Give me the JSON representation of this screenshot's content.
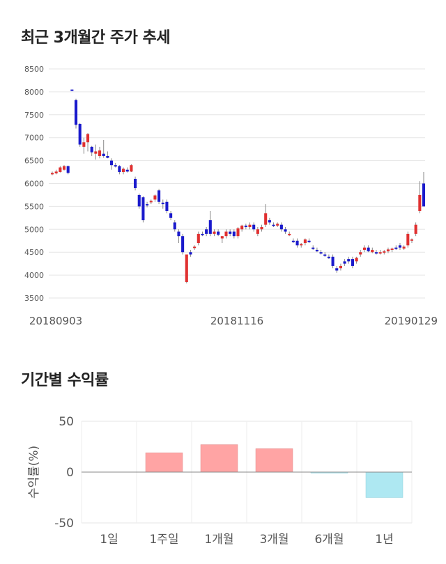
{
  "chart_data": [
    {
      "type": "candlestick",
      "title": "최근 3개월간 주가 추세",
      "y_ticks": [
        3500,
        4000,
        4500,
        5000,
        5500,
        6000,
        6500,
        7000,
        7500,
        8000,
        8500
      ],
      "ylim": [
        3500,
        8500
      ],
      "x_labels": [
        "20180903",
        "20181116",
        "20190129"
      ],
      "grid": true,
      "up_color": "#e03030",
      "down_color": "#1a1acc",
      "candles": [
        [
          6200,
          6260,
          6180,
          6230
        ],
        [
          6220,
          6300,
          6200,
          6260
        ],
        [
          6250,
          6380,
          6240,
          6350
        ],
        [
          6300,
          6400,
          6280,
          6380
        ],
        [
          6380,
          6390,
          6200,
          6230
        ],
        [
          8050,
          8050,
          8030,
          8040
        ],
        [
          7820,
          7850,
          7200,
          7280
        ],
        [
          7300,
          7320,
          6800,
          6850
        ],
        [
          6800,
          7000,
          6650,
          6900
        ],
        [
          6900,
          7100,
          6700,
          7080
        ],
        [
          6800,
          6820,
          6600,
          6680
        ],
        [
          6650,
          6850,
          6520,
          6700
        ],
        [
          6600,
          6800,
          6550,
          6720
        ],
        [
          6650,
          6950,
          6560,
          6600
        ],
        [
          6600,
          6700,
          6550,
          6560
        ],
        [
          6500,
          6550,
          6300,
          6400
        ],
        [
          6400,
          6450,
          6350,
          6380
        ],
        [
          6380,
          6400,
          6200,
          6250
        ],
        [
          6250,
          6350,
          6200,
          6320
        ],
        [
          6300,
          6350,
          6240,
          6260
        ],
        [
          6260,
          6420,
          6250,
          6400
        ],
        [
          6100,
          6150,
          5850,
          5900
        ],
        [
          5750,
          5780,
          5450,
          5500
        ],
        [
          5700,
          5720,
          5150,
          5200
        ],
        [
          5550,
          5600,
          5480,
          5520
        ],
        [
          5600,
          5650,
          5550,
          5620
        ],
        [
          5650,
          5760,
          5600,
          5740
        ],
        [
          5850,
          5880,
          5550,
          5600
        ],
        [
          5580,
          5650,
          5450,
          5560
        ],
        [
          5600,
          5650,
          5350,
          5400
        ],
        [
          5350,
          5400,
          5200,
          5250
        ],
        [
          5150,
          5200,
          4950,
          5000
        ],
        [
          4950,
          5000,
          4700,
          4850
        ],
        [
          4850,
          4900,
          4450,
          4500
        ],
        [
          3850,
          4450,
          3820,
          4450
        ],
        [
          4500,
          4550,
          4400,
          4450
        ],
        [
          4600,
          4650,
          4550,
          4620
        ],
        [
          4700,
          4950,
          4650,
          4900
        ],
        [
          4900,
          4950,
          4850,
          4880
        ],
        [
          5000,
          5050,
          4850,
          4900
        ],
        [
          5200,
          5400,
          4850,
          4900
        ],
        [
          4900,
          5000,
          4850,
          4950
        ],
        [
          4950,
          5000,
          4850,
          4880
        ],
        [
          4800,
          4850,
          4700,
          4850
        ],
        [
          4850,
          5000,
          4800,
          4950
        ],
        [
          4950,
          5000,
          4850,
          4900
        ],
        [
          4950,
          5000,
          4800,
          4850
        ],
        [
          4850,
          5050,
          4800,
          5020
        ],
        [
          5000,
          5100,
          4950,
          5080
        ],
        [
          5080,
          5120,
          5000,
          5050
        ],
        [
          5050,
          5150,
          5000,
          5100
        ],
        [
          5100,
          5150,
          4950,
          5000
        ],
        [
          4900,
          5050,
          4850,
          5000
        ],
        [
          5000,
          5100,
          4950,
          5050
        ],
        [
          5100,
          5550,
          5050,
          5350
        ],
        [
          5200,
          5250,
          5100,
          5150
        ],
        [
          5100,
          5150,
          5050,
          5080
        ],
        [
          5080,
          5150,
          5050,
          5120
        ],
        [
          5100,
          5150,
          4950,
          5000
        ],
        [
          5000,
          5050,
          4900,
          4950
        ],
        [
          4900,
          4950,
          4850,
          4900
        ],
        [
          4750,
          4800,
          4700,
          4720
        ],
        [
          4750,
          4800,
          4600,
          4650
        ],
        [
          4650,
          4700,
          4600,
          4680
        ],
        [
          4700,
          4800,
          4650,
          4780
        ],
        [
          4750,
          4800,
          4700,
          4720
        ],
        [
          4600,
          4650,
          4550,
          4580
        ],
        [
          4550,
          4600,
          4500,
          4520
        ],
        [
          4500,
          4550,
          4450,
          4480
        ],
        [
          4450,
          4500,
          4400,
          4420
        ],
        [
          4400,
          4450,
          4350,
          4380
        ],
        [
          4400,
          4450,
          4150,
          4200
        ],
        [
          4150,
          4200,
          4050,
          4100
        ],
        [
          4150,
          4250,
          4100,
          4200
        ],
        [
          4300,
          4350,
          4200,
          4250
        ],
        [
          4350,
          4400,
          4250,
          4300
        ],
        [
          4350,
          4400,
          4150,
          4200
        ],
        [
          4300,
          4400,
          4250,
          4380
        ],
        [
          4450,
          4550,
          4400,
          4500
        ],
        [
          4550,
          4650,
          4500,
          4600
        ],
        [
          4600,
          4650,
          4500,
          4520
        ],
        [
          4500,
          4600,
          4480,
          4550
        ],
        [
          4500,
          4550,
          4450,
          4480
        ],
        [
          4480,
          4550,
          4450,
          4500
        ],
        [
          4500,
          4550,
          4450,
          4520
        ],
        [
          4520,
          4600,
          4480,
          4560
        ],
        [
          4550,
          4600,
          4500,
          4580
        ],
        [
          4600,
          4650,
          4550,
          4580
        ],
        [
          4650,
          4700,
          4550,
          4600
        ],
        [
          4580,
          4650,
          4550,
          4620
        ],
        [
          4650,
          4950,
          4600,
          4900
        ],
        [
          4750,
          4800,
          4700,
          4780
        ],
        [
          4900,
          5150,
          4850,
          5100
        ],
        [
          5400,
          6050,
          5350,
          5750
        ],
        [
          6000,
          6250,
          5500,
          5500
        ]
      ]
    },
    {
      "type": "bar",
      "title": "기간별 수익률",
      "ylabel": "수익률(%)",
      "categories": [
        "1일",
        "1주일",
        "1개월",
        "3개월",
        "6개월",
        "1년"
      ],
      "values": [
        0,
        19,
        27,
        23,
        -1,
        -25
      ],
      "ylim": [
        -50,
        50
      ],
      "y_ticks": [
        -50,
        0,
        50
      ],
      "positive_color": "#ffa4a4",
      "negative_color": "#aee8f2"
    }
  ]
}
